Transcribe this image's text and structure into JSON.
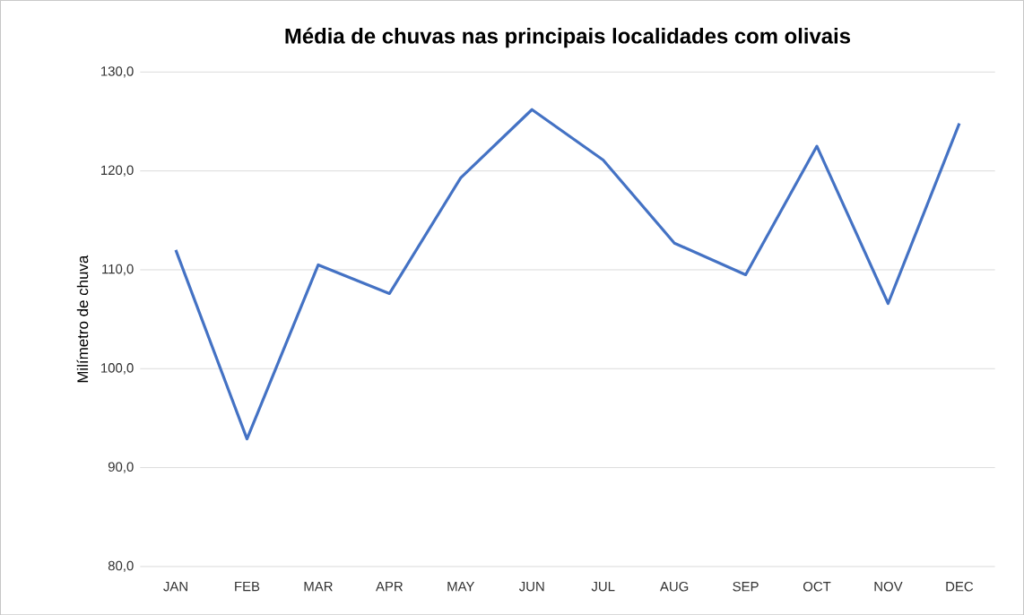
{
  "chart_data": {
    "type": "line",
    "title": "Média de chuvas nas principais localidades com olivais",
    "ylabel": "Milímetro de chuva",
    "categories": [
      "JAN",
      "FEB",
      "MAR",
      "APR",
      "MAY",
      "JUN",
      "JUL",
      "AUG",
      "SEP",
      "OCT",
      "NOV",
      "DEC"
    ],
    "series": [
      {
        "color": "#4472c4",
        "values": [
          112.0,
          92.9,
          110.5,
          107.6,
          119.3,
          126.2,
          121.1,
          112.7,
          109.5,
          122.5,
          106.6,
          124.8
        ]
      }
    ],
    "ylim": [
      80,
      130
    ],
    "yticks": [
      {
        "value": 80,
        "label": "80,0"
      },
      {
        "value": 90,
        "label": "90,0"
      },
      {
        "value": 100,
        "label": "100,0"
      },
      {
        "value": 110,
        "label": "110,0"
      },
      {
        "value": 120,
        "label": "120,0"
      },
      {
        "value": 130,
        "label": "130,0"
      }
    ],
    "grid": "y",
    "marker": "none",
    "line_style": "solid"
  }
}
